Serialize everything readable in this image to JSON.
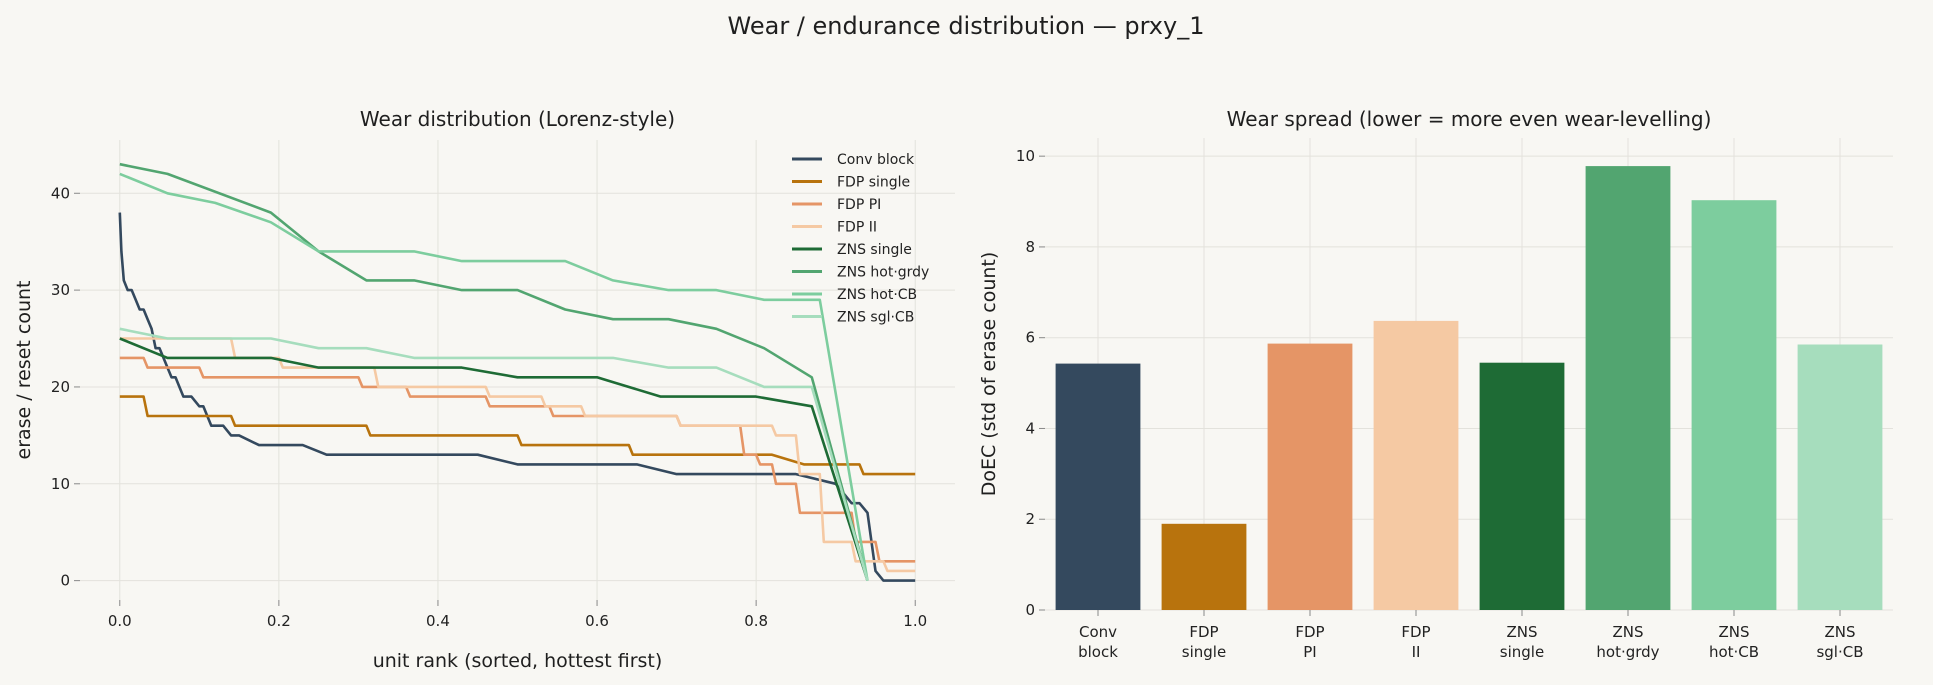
{
  "figure": {
    "title": "Wear / endurance distribution — prxy_1"
  },
  "chart_data": [
    {
      "type": "line",
      "title": "Wear distribution (Lorenz-style)",
      "xlabel": "unit rank (sorted, hottest first)",
      "ylabel": "erase / reset count",
      "xlim": [
        -0.05,
        1.05
      ],
      "ylim": [
        -2,
        45.5
      ],
      "xticks": [
        0.0,
        0.2,
        0.4,
        0.6,
        0.8,
        1.0
      ],
      "xtick_labels": [
        "0.0",
        "0.2",
        "0.4",
        "0.6",
        "0.8",
        "1.0"
      ],
      "yticks": [
        0,
        10,
        20,
        30,
        40
      ],
      "ytick_labels": [
        "0",
        "10",
        "20",
        "30",
        "40"
      ],
      "grid": true,
      "legend": "top-right",
      "series": [
        {
          "name": "Conv block",
          "color": "#34495e",
          "x": [
            0,
            0.002,
            0.005,
            0.01,
            0.015,
            0.02,
            0.025,
            0.03,
            0.035,
            0.04,
            0.045,
            0.05,
            0.055,
            0.06,
            0.065,
            0.07,
            0.075,
            0.08,
            0.09,
            0.1,
            0.105,
            0.11,
            0.115,
            0.12,
            0.13,
            0.14,
            0.15,
            0.175,
            0.2,
            0.23,
            0.26,
            0.3,
            0.35,
            0.4,
            0.45,
            0.5,
            0.55,
            0.6,
            0.65,
            0.7,
            0.75,
            0.8,
            0.85,
            0.9,
            0.91,
            0.92,
            0.93,
            0.94,
            0.95,
            0.96,
            0.98,
            1.0
          ],
          "y": [
            38,
            34,
            31,
            30,
            30,
            29,
            28,
            28,
            27,
            26,
            24,
            24,
            23,
            22,
            21,
            21,
            20,
            19,
            19,
            18,
            18,
            17,
            16,
            16,
            16,
            15,
            15,
            14,
            14,
            14,
            13,
            13,
            13,
            13,
            13,
            12,
            12,
            12,
            12,
            11,
            11,
            11,
            11,
            10,
            9,
            8,
            8,
            7,
            1,
            0,
            0,
            0
          ]
        },
        {
          "name": "FDP single",
          "color": "#b8730d",
          "x": [
            0,
            0.03,
            0.035,
            0.14,
            0.145,
            0.18,
            0.185,
            0.31,
            0.315,
            0.5,
            0.505,
            0.64,
            0.645,
            0.82,
            0.86,
            0.875,
            0.93,
            0.935,
            1.0
          ],
          "y": [
            19,
            19,
            17,
            17,
            16,
            16,
            16,
            16,
            15,
            15,
            14,
            14,
            13,
            13,
            12,
            12,
            12,
            11,
            11
          ]
        },
        {
          "name": "FDP PI",
          "color": "#e59566",
          "x": [
            0,
            0.03,
            0.035,
            0.1,
            0.105,
            0.3,
            0.305,
            0.36,
            0.365,
            0.46,
            0.465,
            0.54,
            0.545,
            0.7,
            0.705,
            0.78,
            0.785,
            0.8,
            0.805,
            0.82,
            0.825,
            0.85,
            0.855,
            0.92,
            0.925,
            0.95,
            0.955,
            1.0
          ],
          "y": [
            23,
            23,
            22,
            22,
            21,
            21,
            20,
            20,
            19,
            19,
            18,
            18,
            17,
            17,
            16,
            16,
            13,
            13,
            12,
            12,
            10,
            10,
            7,
            7,
            4,
            4,
            2,
            2
          ]
        },
        {
          "name": "FDP II",
          "color": "#f5c9a3",
          "x": [
            0,
            0.14,
            0.145,
            0.2,
            0.205,
            0.32,
            0.325,
            0.46,
            0.465,
            0.53,
            0.535,
            0.58,
            0.585,
            0.7,
            0.705,
            0.78,
            0.785,
            0.82,
            0.825,
            0.85,
            0.855,
            0.88,
            0.885,
            0.92,
            0.925,
            0.96,
            0.965,
            1.0
          ],
          "y": [
            25,
            25,
            23,
            23,
            22,
            22,
            20,
            20,
            19,
            19,
            18,
            18,
            17,
            17,
            16,
            16,
            16,
            16,
            15,
            15,
            11,
            11,
            4,
            4,
            2,
            2,
            1,
            1
          ]
        },
        {
          "name": "ZNS single",
          "color": "#1e6b35",
          "x": [
            0,
            0.06,
            0.19,
            0.25,
            0.43,
            0.5,
            0.6,
            0.68,
            0.69,
            0.8,
            0.87,
            0.94
          ],
          "y": [
            25,
            23,
            23,
            22,
            22,
            21,
            21,
            19,
            19,
            19,
            18,
            0
          ]
        },
        {
          "name": "ZNS hot·grdy",
          "color": "#52a570",
          "x": [
            0,
            0.06,
            0.19,
            0.25,
            0.31,
            0.37,
            0.43,
            0.5,
            0.56,
            0.62,
            0.69,
            0.75,
            0.81,
            0.87,
            0.94
          ],
          "y": [
            43,
            42,
            38,
            34,
            31,
            31,
            30,
            30,
            28,
            27,
            27,
            26,
            24,
            21,
            0
          ]
        },
        {
          "name": "ZNS hot·CB",
          "color": "#7dcd9e",
          "x": [
            0,
            0.06,
            0.12,
            0.19,
            0.25,
            0.31,
            0.37,
            0.43,
            0.5,
            0.56,
            0.62,
            0.69,
            0.75,
            0.81,
            0.87,
            0.88,
            0.94
          ],
          "y": [
            42,
            40,
            39,
            37,
            34,
            34,
            34,
            33,
            33,
            33,
            31,
            30,
            30,
            29,
            29,
            29,
            0
          ]
        },
        {
          "name": "ZNS sgl·CB",
          "color": "#a6ddbd",
          "x": [
            0,
            0.06,
            0.19,
            0.25,
            0.31,
            0.37,
            0.43,
            0.5,
            0.56,
            0.62,
            0.69,
            0.75,
            0.81,
            0.87,
            0.94
          ],
          "y": [
            26,
            25,
            25,
            24,
            24,
            23,
            23,
            23,
            23,
            23,
            22,
            22,
            20,
            20,
            0
          ]
        }
      ]
    },
    {
      "type": "bar",
      "title": "Wear spread (lower = more even wear-levelling)",
      "xlabel": "",
      "ylabel": "DoEC (std of erase count)",
      "ylim": [
        0,
        10.4
      ],
      "yticks": [
        0,
        2,
        4,
        6,
        8,
        10
      ],
      "ytick_labels": [
        "0",
        "2",
        "4",
        "6",
        "8",
        "10"
      ],
      "grid": true,
      "categories": [
        "Conv block",
        "FDP single",
        "FDP PI",
        "FDP II",
        "ZNS single",
        "ZNS hot·grdy",
        "ZNS hot·CB",
        "ZNS sgl·CB"
      ],
      "category_lines": [
        [
          "Conv",
          "block"
        ],
        [
          "FDP",
          "single"
        ],
        [
          "FDP",
          "PI"
        ],
        [
          "FDP",
          "II"
        ],
        [
          "ZNS",
          "single"
        ],
        [
          "ZNS",
          "hot·grdy"
        ],
        [
          "ZNS",
          "hot·CB"
        ],
        [
          "ZNS",
          "sgl·CB"
        ]
      ],
      "values": [
        5.43,
        1.9,
        5.87,
        6.37,
        5.45,
        9.78,
        9.03,
        5.85
      ],
      "colors": [
        "#34495e",
        "#b8730d",
        "#e59566",
        "#f5c9a3",
        "#1e6b35",
        "#52a570",
        "#7dcd9e",
        "#a6ddbd"
      ]
    }
  ]
}
